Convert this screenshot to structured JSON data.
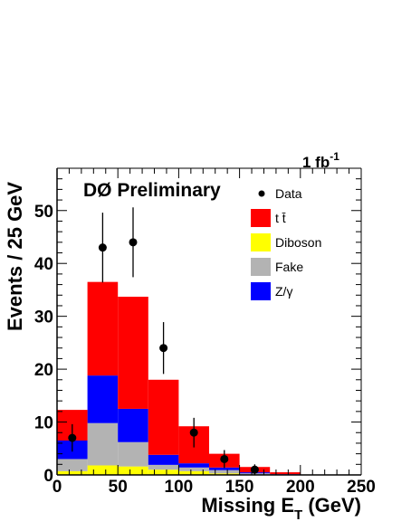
{
  "chart_data": {
    "type": "bar",
    "subtype": "stacked-histogram-with-data-points",
    "banner": "DØ Preliminary",
    "luminosity": {
      "value": "1 fb",
      "exponent": "-1"
    },
    "xlabel": {
      "main": "Missing E",
      "sub": "T",
      "unit": " (GeV)"
    },
    "ylabel": "Events / 25 GeV",
    "xlim": [
      0,
      250
    ],
    "ylim": [
      0,
      58
    ],
    "x_ticks": [
      "0",
      "50",
      "100",
      "150",
      "200",
      "250"
    ],
    "y_ticks": [
      "0",
      "10",
      "20",
      "30",
      "40",
      "50"
    ],
    "bin_edges": [
      0,
      25,
      50,
      75,
      100,
      125,
      150,
      175,
      200
    ],
    "stack": [
      {
        "name": "Diboson",
        "color": "#ffff00",
        "values": [
          0.7,
          1.8,
          1.6,
          1.0,
          0.7,
          0.3,
          0.1,
          0.05
        ]
      },
      {
        "name": "Fake",
        "color": "#b3b3b3",
        "values": [
          2.3,
          8.0,
          4.6,
          0.9,
          0.7,
          0.6,
          0.2,
          0.05
        ]
      },
      {
        "name": "Z/γ",
        "color": "#0000ff",
        "values": [
          3.5,
          9.0,
          6.3,
          1.9,
          0.8,
          0.5,
          0.2,
          0.05
        ]
      },
      {
        "name": "t t̄",
        "color": "#ff0000",
        "values": [
          5.8,
          17.7,
          21.2,
          14.2,
          7.0,
          2.6,
          1.0,
          0.35
        ]
      }
    ],
    "data_points": {
      "name": "Data",
      "x": [
        12.5,
        37.5,
        62.5,
        87.5,
        112.5,
        137.5,
        162.5
      ],
      "y": [
        7,
        43,
        44,
        24,
        8,
        3,
        1
      ],
      "err": [
        2.6,
        6.6,
        6.6,
        4.9,
        2.8,
        1.7,
        1.0
      ]
    },
    "legend": [
      {
        "label": "Data",
        "kind": "marker"
      },
      {
        "label": "t t̄",
        "kind": "box",
        "color": "#ff0000"
      },
      {
        "label": "Diboson",
        "kind": "box",
        "color": "#ffff00"
      },
      {
        "label": "Fake",
        "kind": "box",
        "color": "#b3b3b3"
      },
      {
        "label": "Z/γ",
        "kind": "box",
        "color": "#0000ff"
      }
    ],
    "legend_position": "top-right",
    "grid": false
  }
}
